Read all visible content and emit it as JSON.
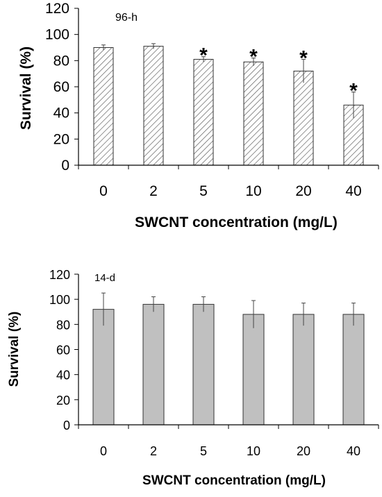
{
  "chart_data": [
    {
      "type": "bar",
      "panel_label": "96-h",
      "xlabel": "SWCNT concentration (mg/L)",
      "ylabel": "Survival (%)",
      "categories": [
        "0",
        "2",
        "5",
        "10",
        "20",
        "40"
      ],
      "values": [
        90,
        91,
        81,
        79,
        72,
        46
      ],
      "errors": [
        2,
        2,
        2,
        3,
        9,
        10
      ],
      "significance_markers": [
        "",
        "",
        "*",
        "*",
        "*",
        "*"
      ],
      "ylim": [
        0,
        120
      ],
      "yticks": [
        "0",
        "20",
        "40",
        "60",
        "80",
        "100",
        "120"
      ],
      "bar_fill": "hatched",
      "bar_color": "#ffffff",
      "grid": false
    },
    {
      "type": "bar",
      "panel_label": "14-d",
      "xlabel": "SWCNT concentration (mg/L)",
      "ylabel": "Survival (%)",
      "categories": [
        "0",
        "2",
        "5",
        "10",
        "20",
        "40"
      ],
      "values": [
        92,
        96,
        96,
        88,
        88,
        88
      ],
      "errors": [
        13,
        6,
        6,
        11,
        9,
        9
      ],
      "significance_markers": [
        "",
        "",
        "",
        "",
        "",
        ""
      ],
      "ylim": [
        0,
        120
      ],
      "yticks": [
        "0",
        "20",
        "40",
        "60",
        "80",
        "100",
        "120"
      ],
      "bar_fill": "solid",
      "bar_color": "#c0c0c0",
      "grid": false
    }
  ]
}
